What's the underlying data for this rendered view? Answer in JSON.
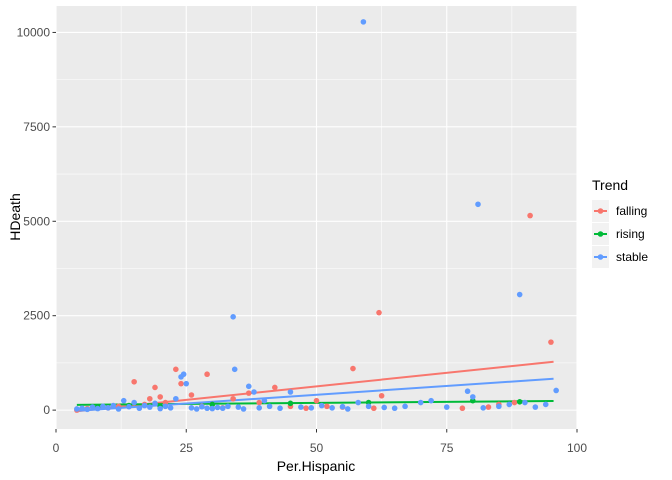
{
  "chart_data": {
    "type": "scatter",
    "title": "",
    "xlabel": "Per.Hispanic",
    "ylabel": "HDeath",
    "xlim": [
      0,
      100
    ],
    "ylim": [
      -500,
      10700
    ],
    "x_ticks": [
      0,
      25,
      50,
      75,
      100
    ],
    "x_tick_labels": [
      "0",
      "25",
      "50",
      "75",
      "100"
    ],
    "y_ticks": [
      0,
      2500,
      5000,
      7500,
      10000
    ],
    "y_tick_labels": [
      "0",
      "2500",
      "5000",
      "7500",
      "10000"
    ],
    "grid": true,
    "legend_position": "right",
    "legend_title": "Trend",
    "series": [
      {
        "name": "falling",
        "color": "#F8766D",
        "trend_line": {
          "x": [
            4,
            95.5
          ],
          "y": [
            -30,
            1280
          ]
        },
        "points": [
          {
            "x": 4,
            "y": 0
          },
          {
            "x": 6,
            "y": 40
          },
          {
            "x": 8,
            "y": 70
          },
          {
            "x": 10,
            "y": 60
          },
          {
            "x": 12,
            "y": 100
          },
          {
            "x": 15,
            "y": 750
          },
          {
            "x": 17,
            "y": 150
          },
          {
            "x": 18,
            "y": 300
          },
          {
            "x": 19,
            "y": 600
          },
          {
            "x": 20,
            "y": 350
          },
          {
            "x": 21,
            "y": 200
          },
          {
            "x": 23,
            "y": 1080
          },
          {
            "x": 24,
            "y": 700
          },
          {
            "x": 26,
            "y": 400
          },
          {
            "x": 28,
            "y": 100
          },
          {
            "x": 29,
            "y": 950
          },
          {
            "x": 30,
            "y": 150
          },
          {
            "x": 32,
            "y": 60
          },
          {
            "x": 34,
            "y": 300
          },
          {
            "x": 37,
            "y": 450
          },
          {
            "x": 39,
            "y": 200
          },
          {
            "x": 42,
            "y": 600
          },
          {
            "x": 45,
            "y": 100
          },
          {
            "x": 48,
            "y": 50
          },
          {
            "x": 50,
            "y": 250
          },
          {
            "x": 52,
            "y": 100
          },
          {
            "x": 55,
            "y": 80
          },
          {
            "x": 57,
            "y": 1100
          },
          {
            "x": 61,
            "y": 50
          },
          {
            "x": 62,
            "y": 2580
          },
          {
            "x": 62.5,
            "y": 380
          },
          {
            "x": 78,
            "y": 50
          },
          {
            "x": 83,
            "y": 80
          },
          {
            "x": 85,
            "y": 150
          },
          {
            "x": 88,
            "y": 200
          },
          {
            "x": 91,
            "y": 5150
          },
          {
            "x": 95,
            "y": 1800
          }
        ]
      },
      {
        "name": "rising",
        "color": "#00BA38",
        "trend_line": {
          "x": [
            4,
            95.5
          ],
          "y": [
            140,
            240
          ]
        },
        "points": [
          {
            "x": 8,
            "y": 80
          },
          {
            "x": 14,
            "y": 120
          },
          {
            "x": 20,
            "y": 100
          },
          {
            "x": 30,
            "y": 150
          },
          {
            "x": 45,
            "y": 180
          },
          {
            "x": 60,
            "y": 200
          },
          {
            "x": 80,
            "y": 250
          },
          {
            "x": 89,
            "y": 220
          }
        ]
      },
      {
        "name": "stable",
        "color": "#619CFF",
        "trend_line": {
          "x": [
            4,
            95.5
          ],
          "y": [
            -20,
            830
          ]
        },
        "points": [
          {
            "x": 4,
            "y": 30
          },
          {
            "x": 5,
            "y": 50
          },
          {
            "x": 6,
            "y": 20
          },
          {
            "x": 7,
            "y": 80
          },
          {
            "x": 8,
            "y": 40
          },
          {
            "x": 9,
            "y": 100
          },
          {
            "x": 10,
            "y": 60
          },
          {
            "x": 11,
            "y": 120
          },
          {
            "x": 12,
            "y": 30
          },
          {
            "x": 13,
            "y": 250
          },
          {
            "x": 14,
            "y": 90
          },
          {
            "x": 15,
            "y": 200
          },
          {
            "x": 16,
            "y": 50
          },
          {
            "x": 17,
            "y": 120
          },
          {
            "x": 18,
            "y": 80
          },
          {
            "x": 19,
            "y": 180
          },
          {
            "x": 20,
            "y": 40
          },
          {
            "x": 21,
            "y": 100
          },
          {
            "x": 22,
            "y": 60
          },
          {
            "x": 23,
            "y": 300
          },
          {
            "x": 24,
            "y": 880
          },
          {
            "x": 24.5,
            "y": 950
          },
          {
            "x": 25,
            "y": 700
          },
          {
            "x": 26,
            "y": 60
          },
          {
            "x": 27,
            "y": 30
          },
          {
            "x": 28,
            "y": 90
          },
          {
            "x": 29,
            "y": 50
          },
          {
            "x": 30,
            "y": 40
          },
          {
            "x": 31,
            "y": 70
          },
          {
            "x": 32,
            "y": 50
          },
          {
            "x": 33,
            "y": 100
          },
          {
            "x": 34,
            "y": 2470
          },
          {
            "x": 34.3,
            "y": 1080
          },
          {
            "x": 35,
            "y": 80
          },
          {
            "x": 36,
            "y": 30
          },
          {
            "x": 37,
            "y": 630
          },
          {
            "x": 38,
            "y": 480
          },
          {
            "x": 39,
            "y": 60
          },
          {
            "x": 40,
            "y": 250
          },
          {
            "x": 41,
            "y": 100
          },
          {
            "x": 43,
            "y": 50
          },
          {
            "x": 45,
            "y": 480
          },
          {
            "x": 47,
            "y": 80
          },
          {
            "x": 49,
            "y": 60
          },
          {
            "x": 51,
            "y": 120
          },
          {
            "x": 53,
            "y": 60
          },
          {
            "x": 55,
            "y": 90
          },
          {
            "x": 56,
            "y": 30
          },
          {
            "x": 58,
            "y": 200
          },
          {
            "x": 59,
            "y": 10280
          },
          {
            "x": 60,
            "y": 100
          },
          {
            "x": 63,
            "y": 70
          },
          {
            "x": 65,
            "y": 50
          },
          {
            "x": 67,
            "y": 100
          },
          {
            "x": 70,
            "y": 200
          },
          {
            "x": 72,
            "y": 250
          },
          {
            "x": 75,
            "y": 80
          },
          {
            "x": 79,
            "y": 500
          },
          {
            "x": 80,
            "y": 350
          },
          {
            "x": 81,
            "y": 5450
          },
          {
            "x": 82,
            "y": 60
          },
          {
            "x": 85,
            "y": 100
          },
          {
            "x": 87,
            "y": 150
          },
          {
            "x": 89,
            "y": 3060
          },
          {
            "x": 90,
            "y": 200
          },
          {
            "x": 92,
            "y": 80
          },
          {
            "x": 94,
            "y": 150
          },
          {
            "x": 96,
            "y": 520
          }
        ]
      }
    ]
  }
}
